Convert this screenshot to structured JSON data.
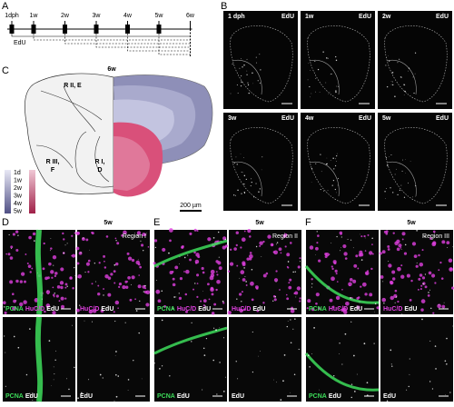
{
  "panel_a": {
    "letter": "A",
    "timepoints": [
      "1dph",
      "1w",
      "2w",
      "3w",
      "4w",
      "5w",
      "6w"
    ],
    "label": "EdU"
  },
  "panel_b": {
    "letter": "B",
    "images": [
      {
        "time": "1 dph",
        "stain": "EdU"
      },
      {
        "time": "1w",
        "stain": "EdU"
      },
      {
        "time": "2w",
        "stain": "EdU"
      },
      {
        "time": "3w",
        "stain": "EdU"
      },
      {
        "time": "4w",
        "stain": "EdU"
      },
      {
        "time": "5w",
        "stain": "EdU"
      }
    ]
  },
  "panel_c": {
    "letter": "C",
    "time": "6w",
    "regions": [
      [
        "R II, E"
      ],
      [
        "R III,",
        "F"
      ],
      [
        "R I,",
        "D"
      ]
    ],
    "legend": [
      "1d",
      "1w",
      "2w",
      "3w",
      "4w",
      "5w"
    ],
    "scale_bar": "200 µm"
  },
  "panels_def": [
    {
      "letter": "D",
      "time": "5w",
      "region": "Region I",
      "images": [
        [
          {
            "text": "PCNA",
            "color": "#3ddc5a"
          },
          {
            "text": "HuC/D",
            "color": "#e040e0"
          },
          {
            "text": "EdU",
            "color": "#ffffff"
          }
        ],
        [
          {
            "text": "HuC/D",
            "color": "#e040e0"
          },
          {
            "text": "EdU",
            "color": "#ffffff"
          }
        ],
        [
          {
            "text": "PCNA",
            "color": "#3ddc5a"
          },
          {
            "text": "EdU",
            "color": "#ffffff"
          }
        ],
        [
          {
            "text": "EdU",
            "color": "#ffffff"
          }
        ]
      ]
    },
    {
      "letter": "E",
      "time": "5w",
      "region": "Region II",
      "images": [
        [
          {
            "text": "PCNA",
            "color": "#3ddc5a"
          },
          {
            "text": "HuC/D",
            "color": "#e040e0"
          },
          {
            "text": "EdU",
            "color": "#ffffff"
          }
        ],
        [
          {
            "text": "HuC/D",
            "color": "#e040e0"
          },
          {
            "text": "EdU",
            "color": "#ffffff"
          }
        ],
        [
          {
            "text": "PCNA",
            "color": "#3ddc5a"
          },
          {
            "text": "EdU",
            "color": "#ffffff"
          }
        ],
        [
          {
            "text": "EdU",
            "color": "#ffffff"
          }
        ]
      ]
    },
    {
      "letter": "F",
      "time": "5w",
      "region": "Region III",
      "images": [
        [
          {
            "text": "PCNA",
            "color": "#3ddc5a"
          },
          {
            "text": "HuC/D",
            "color": "#e040e0"
          },
          {
            "text": "EdU",
            "color": "#ffffff"
          }
        ],
        [
          {
            "text": "HuC/D",
            "color": "#e040e0"
          },
          {
            "text": "EdU",
            "color": "#ffffff"
          }
        ],
        [
          {
            "text": "PCNA",
            "color": "#3ddc5a"
          },
          {
            "text": "EdU",
            "color": "#ffffff"
          }
        ],
        [
          {
            "text": "EdU",
            "color": "#ffffff"
          }
        ]
      ]
    }
  ]
}
